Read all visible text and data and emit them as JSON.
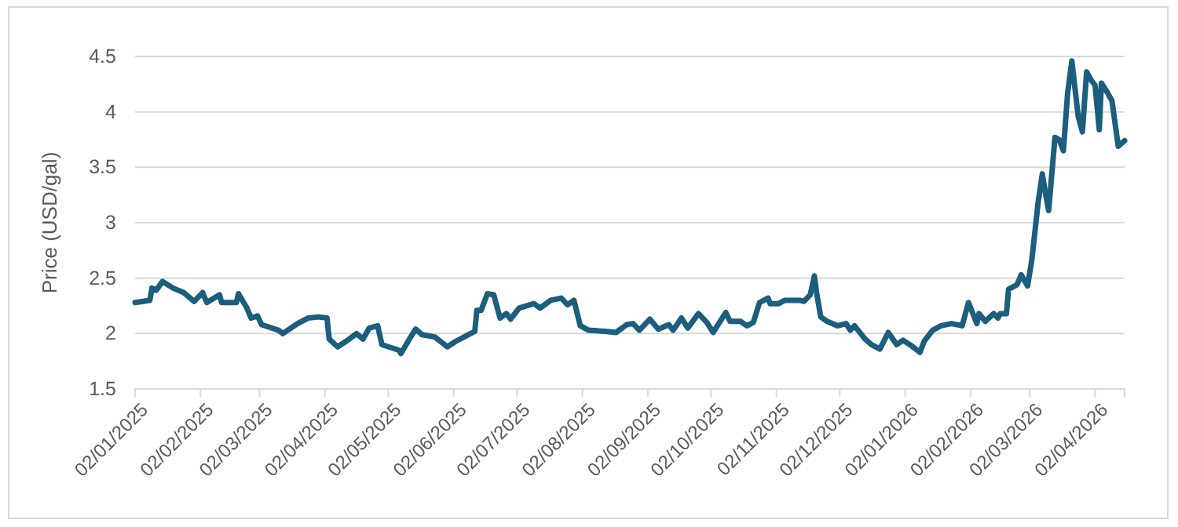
{
  "chart_data": {
    "type": "line",
    "ylabel": "Price (USD/gal)",
    "x": [
      "2025-01-02",
      "2025-01-09",
      "2025-01-10",
      "2025-01-12",
      "2025-01-15",
      "2025-01-20",
      "2025-01-25",
      "2025-01-30",
      "2025-02-03",
      "2025-02-05",
      "2025-02-11",
      "2025-02-12",
      "2025-02-19",
      "2025-02-20",
      "2025-02-24",
      "2025-02-26",
      "2025-03-01",
      "2025-03-03",
      "2025-03-11",
      "2025-03-13",
      "2025-03-20",
      "2025-03-25",
      "2025-03-30",
      "2025-04-03",
      "2025-04-04",
      "2025-04-08",
      "2025-04-12",
      "2025-04-17",
      "2025-04-20",
      "2025-04-23",
      "2025-04-27",
      "2025-04-29",
      "2025-05-07",
      "2025-05-08",
      "2025-05-12",
      "2025-05-15",
      "2025-05-18",
      "2025-05-24",
      "2025-05-30",
      "2025-06-03",
      "2025-06-07",
      "2025-06-12",
      "2025-06-13",
      "2025-06-15",
      "2025-06-18",
      "2025-06-21",
      "2025-06-24",
      "2025-06-27",
      "2025-06-29",
      "2025-07-03",
      "2025-07-10",
      "2025-07-13",
      "2025-07-18",
      "2025-07-23",
      "2025-07-26",
      "2025-07-29",
      "2025-08-01",
      "2025-08-05",
      "2025-08-13",
      "2025-08-18",
      "2025-08-23",
      "2025-08-26",
      "2025-08-29",
      "2025-09-03",
      "2025-09-07",
      "2025-09-12",
      "2025-09-14",
      "2025-09-18",
      "2025-09-21",
      "2025-09-26",
      "2025-09-30",
      "2025-10-03",
      "2025-10-09",
      "2025-10-11",
      "2025-10-16",
      "2025-10-19",
      "2025-10-22",
      "2025-10-25",
      "2025-10-29",
      "2025-10-30",
      "2025-11-03",
      "2025-11-06",
      "2025-11-13",
      "2025-11-15",
      "2025-11-18",
      "2025-11-20",
      "2025-11-21",
      "2025-11-23",
      "2025-11-26",
      "2025-12-01",
      "2025-12-05",
      "2025-12-07",
      "2025-12-09",
      "2025-12-14",
      "2025-12-17",
      "2025-12-21",
      "2025-12-25",
      "2025-12-29",
      "2026-01-01",
      "2026-01-05",
      "2026-01-09",
      "2026-01-11",
      "2026-01-15",
      "2026-01-19",
      "2026-01-24",
      "2026-01-29",
      "2026-02-01",
      "2026-02-05",
      "2026-02-06",
      "2026-02-09",
      "2026-02-13",
      "2026-02-15",
      "2026-02-16",
      "2026-02-19",
      "2026-02-20",
      "2026-02-24",
      "2026-02-26",
      "2026-03-01",
      "2026-03-03",
      "2026-03-06",
      "2026-03-08",
      "2026-03-09",
      "2026-03-11",
      "2026-03-14",
      "2026-03-16",
      "2026-03-18",
      "2026-03-20",
      "2026-03-22",
      "2026-03-25",
      "2026-03-27",
      "2026-03-29",
      "2026-03-31",
      "2026-04-02",
      "2026-04-04",
      "2026-04-05",
      "2026-04-08",
      "2026-04-10",
      "2026-04-13",
      "2026-04-16"
    ],
    "series": [
      {
        "color": "#1b5e7e",
        "values": [
          2.28,
          2.3,
          2.41,
          2.39,
          2.47,
          2.41,
          2.37,
          2.29,
          2.37,
          2.28,
          2.35,
          2.28,
          2.28,
          2.36,
          2.23,
          2.14,
          2.16,
          2.08,
          2.03,
          2.0,
          2.09,
          2.14,
          2.15,
          2.14,
          1.95,
          1.88,
          1.93,
          2.0,
          1.95,
          2.05,
          2.07,
          1.9,
          1.85,
          1.82,
          1.95,
          2.04,
          1.99,
          1.97,
          1.88,
          1.93,
          1.97,
          2.02,
          2.21,
          2.21,
          2.36,
          2.35,
          2.14,
          2.18,
          2.13,
          2.23,
          2.27,
          2.23,
          2.3,
          2.32,
          2.26,
          2.3,
          2.07,
          2.03,
          2.02,
          2.01,
          2.08,
          2.09,
          2.03,
          2.13,
          2.04,
          2.08,
          2.03,
          2.14,
          2.05,
          2.18,
          2.1,
          2.01,
          2.19,
          2.11,
          2.11,
          2.07,
          2.1,
          2.28,
          2.32,
          2.27,
          2.27,
          2.3,
          2.3,
          2.29,
          2.35,
          2.52,
          2.37,
          2.15,
          2.11,
          2.07,
          2.09,
          2.03,
          2.07,
          1.95,
          1.9,
          1.86,
          2.01,
          1.9,
          1.94,
          1.89,
          1.83,
          1.93,
          2.03,
          2.07,
          2.09,
          2.07,
          2.28,
          2.09,
          2.18,
          2.11,
          2.18,
          2.14,
          2.18,
          2.18,
          2.4,
          2.44,
          2.53,
          2.43,
          2.66,
          3.18,
          3.44,
          3.32,
          3.11,
          3.77,
          3.75,
          3.65,
          4.17,
          4.46,
          3.96,
          3.82,
          4.36,
          4.29,
          4.24,
          3.84,
          4.26,
          4.17,
          4.1,
          3.69,
          3.74
        ]
      }
    ],
    "xlim": [
      "2025-01-02",
      "2026-04-16"
    ],
    "xticks": [
      {
        "value": "2025-01-02",
        "label": "02/01/2025"
      },
      {
        "value": "2025-02-02",
        "label": "02/02/2025"
      },
      {
        "value": "2025-03-02",
        "label": "02/03/2025"
      },
      {
        "value": "2025-04-02",
        "label": "02/04/2025"
      },
      {
        "value": "2025-05-02",
        "label": "02/05/2025"
      },
      {
        "value": "2025-06-02",
        "label": "02/06/2025"
      },
      {
        "value": "2025-07-02",
        "label": "02/07/2025"
      },
      {
        "value": "2025-08-02",
        "label": "02/08/2025"
      },
      {
        "value": "2025-09-02",
        "label": "02/09/2025"
      },
      {
        "value": "2025-10-02",
        "label": "02/10/2025"
      },
      {
        "value": "2025-11-02",
        "label": "02/11/2025"
      },
      {
        "value": "2025-12-02",
        "label": "02/12/2025"
      },
      {
        "value": "2026-01-02",
        "label": "02/01/2026"
      },
      {
        "value": "2026-02-02",
        "label": "02/02/2026"
      },
      {
        "value": "2026-03-02",
        "label": "02/03/2026"
      },
      {
        "value": "2026-04-02",
        "label": "02/04/2026"
      }
    ],
    "ylim": [
      1.5,
      4.5
    ],
    "yticks": [
      1.5,
      2,
      2.5,
      3,
      3.5,
      4,
      4.5
    ],
    "grid": "y",
    "marker": "none",
    "line_style": "solid"
  }
}
